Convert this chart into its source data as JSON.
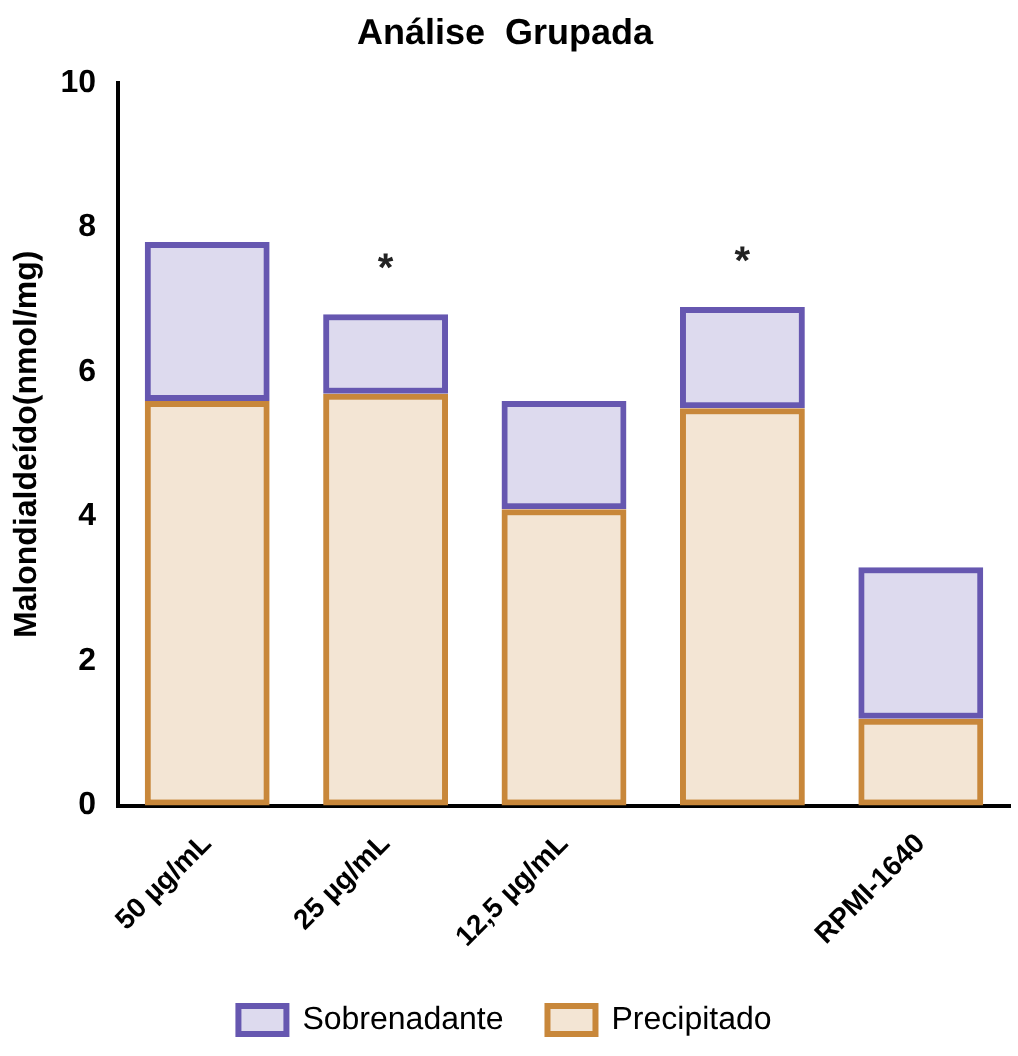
{
  "chart_data": {
    "type": "bar",
    "title": "Análise  Grupada",
    "ylabel": "Malondialdeído(nmol/mg)",
    "categories": [
      "50 µg/mL",
      "25 µg/mL",
      "12,5 µg/mL",
      null,
      "RPMI-1640"
    ],
    "stacked": true,
    "series": [
      {
        "name": "Precipitado",
        "color": "#c8873a",
        "values": [
          5.6,
          5.7,
          4.1,
          5.5,
          1.2
        ]
      },
      {
        "name": "Sobrenadante",
        "color": "#6657b0",
        "values": [
          2.2,
          1.1,
          1.5,
          1.4,
          2.1
        ]
      }
    ],
    "ylim": [
      0,
      10
    ],
    "yticks": [
      0,
      2,
      4,
      6,
      8,
      10
    ],
    "grid": false,
    "legend": "bottom",
    "annotations": [
      {
        "text": "*",
        "x": "25 µg/mL",
        "y": 6.8
      },
      {
        "text": "*",
        "y": 6.9
      }
    ]
  }
}
